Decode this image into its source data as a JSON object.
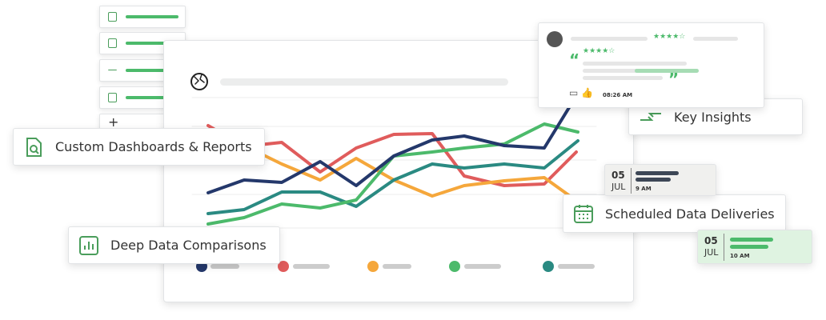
{
  "features": [
    "Custom Dashboards & Reports",
    "Deep Data Comparisons",
    "Key Insights",
    "Scheduled Data Deliveries"
  ],
  "review": {
    "time": "08:26 AM"
  },
  "deliveries": [
    {
      "day": "05",
      "month": "JUL",
      "time": "9 AM"
    },
    {
      "day": "05",
      "month": "JUL",
      "time": "10 AM"
    }
  ]
}
